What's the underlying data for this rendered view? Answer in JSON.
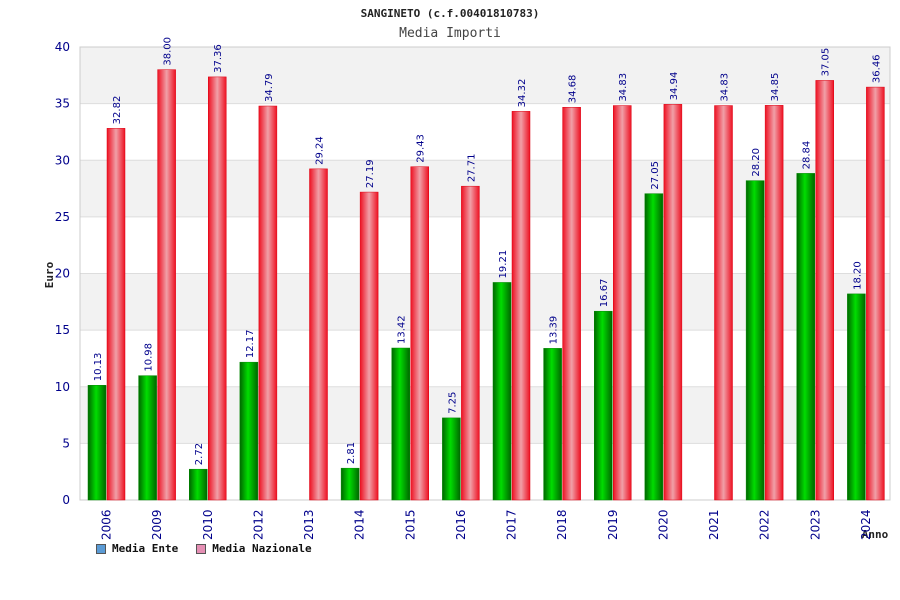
{
  "chart_data": {
    "type": "bar",
    "title": "SANGINETO (c.f.00401810783)",
    "subtitle": "Media Importi",
    "ylabel": "Euro",
    "xlabel": "Anno",
    "ylim": [
      0,
      40
    ],
    "yticks": [
      0,
      5,
      10,
      15,
      20,
      25,
      30,
      35,
      40
    ],
    "categories": [
      "2006",
      "2009",
      "2010",
      "2012",
      "2013",
      "2014",
      "2015",
      "2016",
      "2017",
      "2018",
      "2019",
      "2020",
      "2021",
      "2022",
      "2023",
      "2024"
    ],
    "series": [
      {
        "name": "Media Ente",
        "color": "#00aa00",
        "values": [
          10.13,
          10.98,
          2.72,
          12.17,
          null,
          2.81,
          13.42,
          7.25,
          19.21,
          13.39,
          16.67,
          27.05,
          null,
          28.2,
          28.84,
          18.2
        ],
        "labels": [
          "10.13",
          "10.98",
          "2.72",
          "12.17",
          "",
          "2.81",
          "13.42",
          "7.25",
          "19.21",
          "13.39",
          "16.67",
          "27.05",
          "",
          "28.20",
          "28.84",
          "18.20"
        ]
      },
      {
        "name": "Media Nazionale",
        "color": "#ee1122",
        "values": [
          32.82,
          38.0,
          37.36,
          34.79,
          29.24,
          27.19,
          29.43,
          27.71,
          34.32,
          34.68,
          34.83,
          34.94,
          34.83,
          34.85,
          37.05,
          36.46
        ],
        "labels": [
          "32.82",
          "38.00",
          "37.36",
          "34.79",
          "29.24",
          "27.19",
          "29.43",
          "27.71",
          "34.32",
          "34.68",
          "34.83",
          "34.94",
          "34.83",
          "34.85",
          "37.05",
          "36.46"
        ]
      }
    ]
  },
  "legend": {
    "ente_label": "Media Ente",
    "ente_color": "#5b9bd5",
    "nazionale_label": "Media Nazionale",
    "nazionale_color": "#e58fb4"
  }
}
